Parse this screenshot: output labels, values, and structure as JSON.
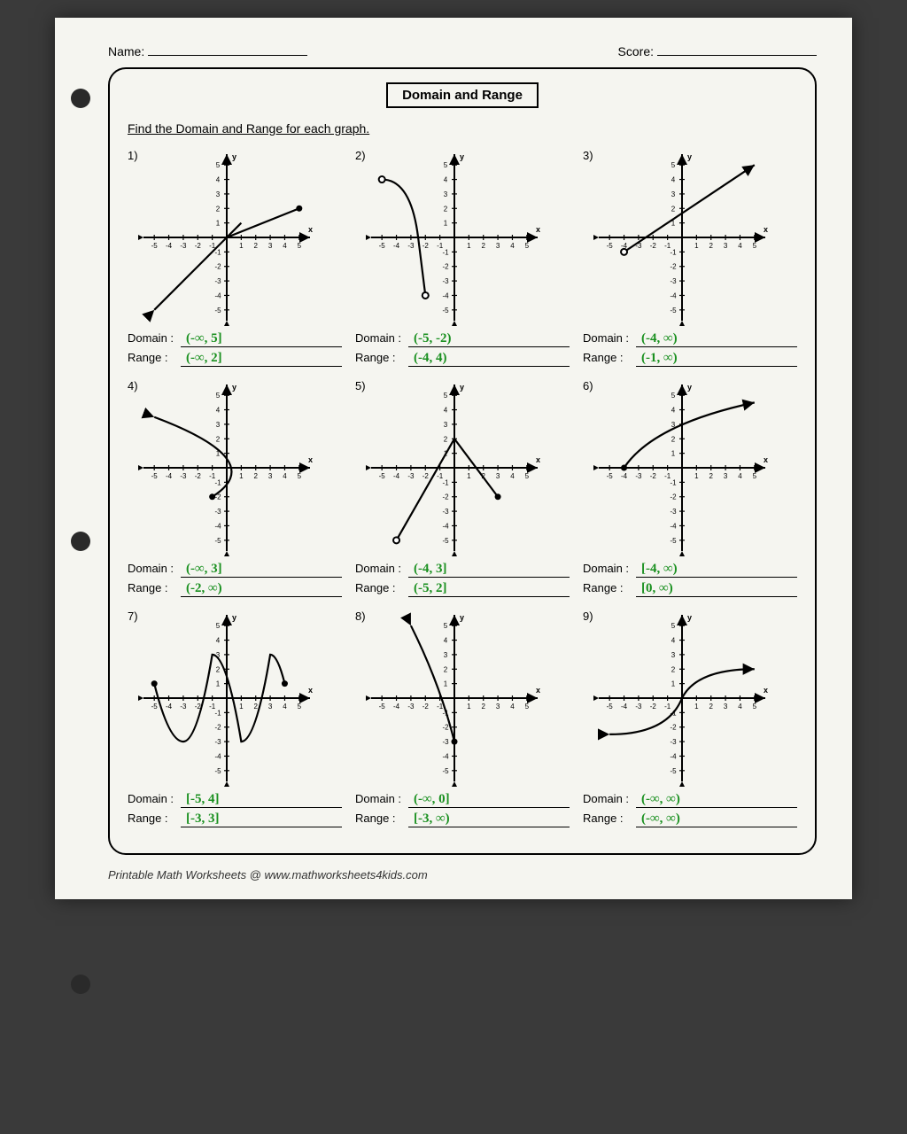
{
  "header": {
    "name_label": "Name:",
    "score_label": "Score:"
  },
  "title": "Domain and Range",
  "instruction": "Find the Domain and Range for each graph.",
  "labels": {
    "domain": "Domain :",
    "range": "Range :"
  },
  "axis": {
    "x_label": "x",
    "y_label": "y",
    "ticks": [
      -5,
      -4,
      -3,
      -2,
      -1,
      1,
      2,
      3,
      4,
      5
    ],
    "range": [
      -5.5,
      5.5
    ],
    "grid_size": 200,
    "axis_color": "#000000",
    "background": "#f5f5f0"
  },
  "answer_color": "#1a9020",
  "problems": [
    {
      "num": "1)",
      "domain": "(-∞, 5]",
      "range": "(-∞, 2]",
      "type": "ray_segment"
    },
    {
      "num": "2)",
      "domain": "(-5, -2)",
      "range": "(-4, 4)",
      "type": "curve_vertical"
    },
    {
      "num": "3)",
      "domain": "(-4, ∞)",
      "range": "(-1, ∞)",
      "type": "ray_up"
    },
    {
      "num": "4)",
      "domain": "(-∞, 3]",
      "range": "(-2, ∞)",
      "type": "sideways_parabola"
    },
    {
      "num": "5)",
      "domain": "(-4, 3]",
      "range": "(-5, 2]",
      "type": "piecewise_v"
    },
    {
      "num": "6)",
      "domain": "[-4, ∞)",
      "range": "[0, ∞)",
      "type": "sqrt_curve"
    },
    {
      "num": "7)",
      "domain": "[-5, 4]",
      "range": "[-3, 3]",
      "type": "wave"
    },
    {
      "num": "8)",
      "domain": "(-∞, 0]",
      "range": "[-3, ∞)",
      "type": "curve_up"
    },
    {
      "num": "9)",
      "domain": "(-∞, ∞)",
      "range": "(-∞, ∞)",
      "type": "s_curve"
    }
  ],
  "footer": "Printable Math Worksheets @ www.mathworksheets4kids.com"
}
